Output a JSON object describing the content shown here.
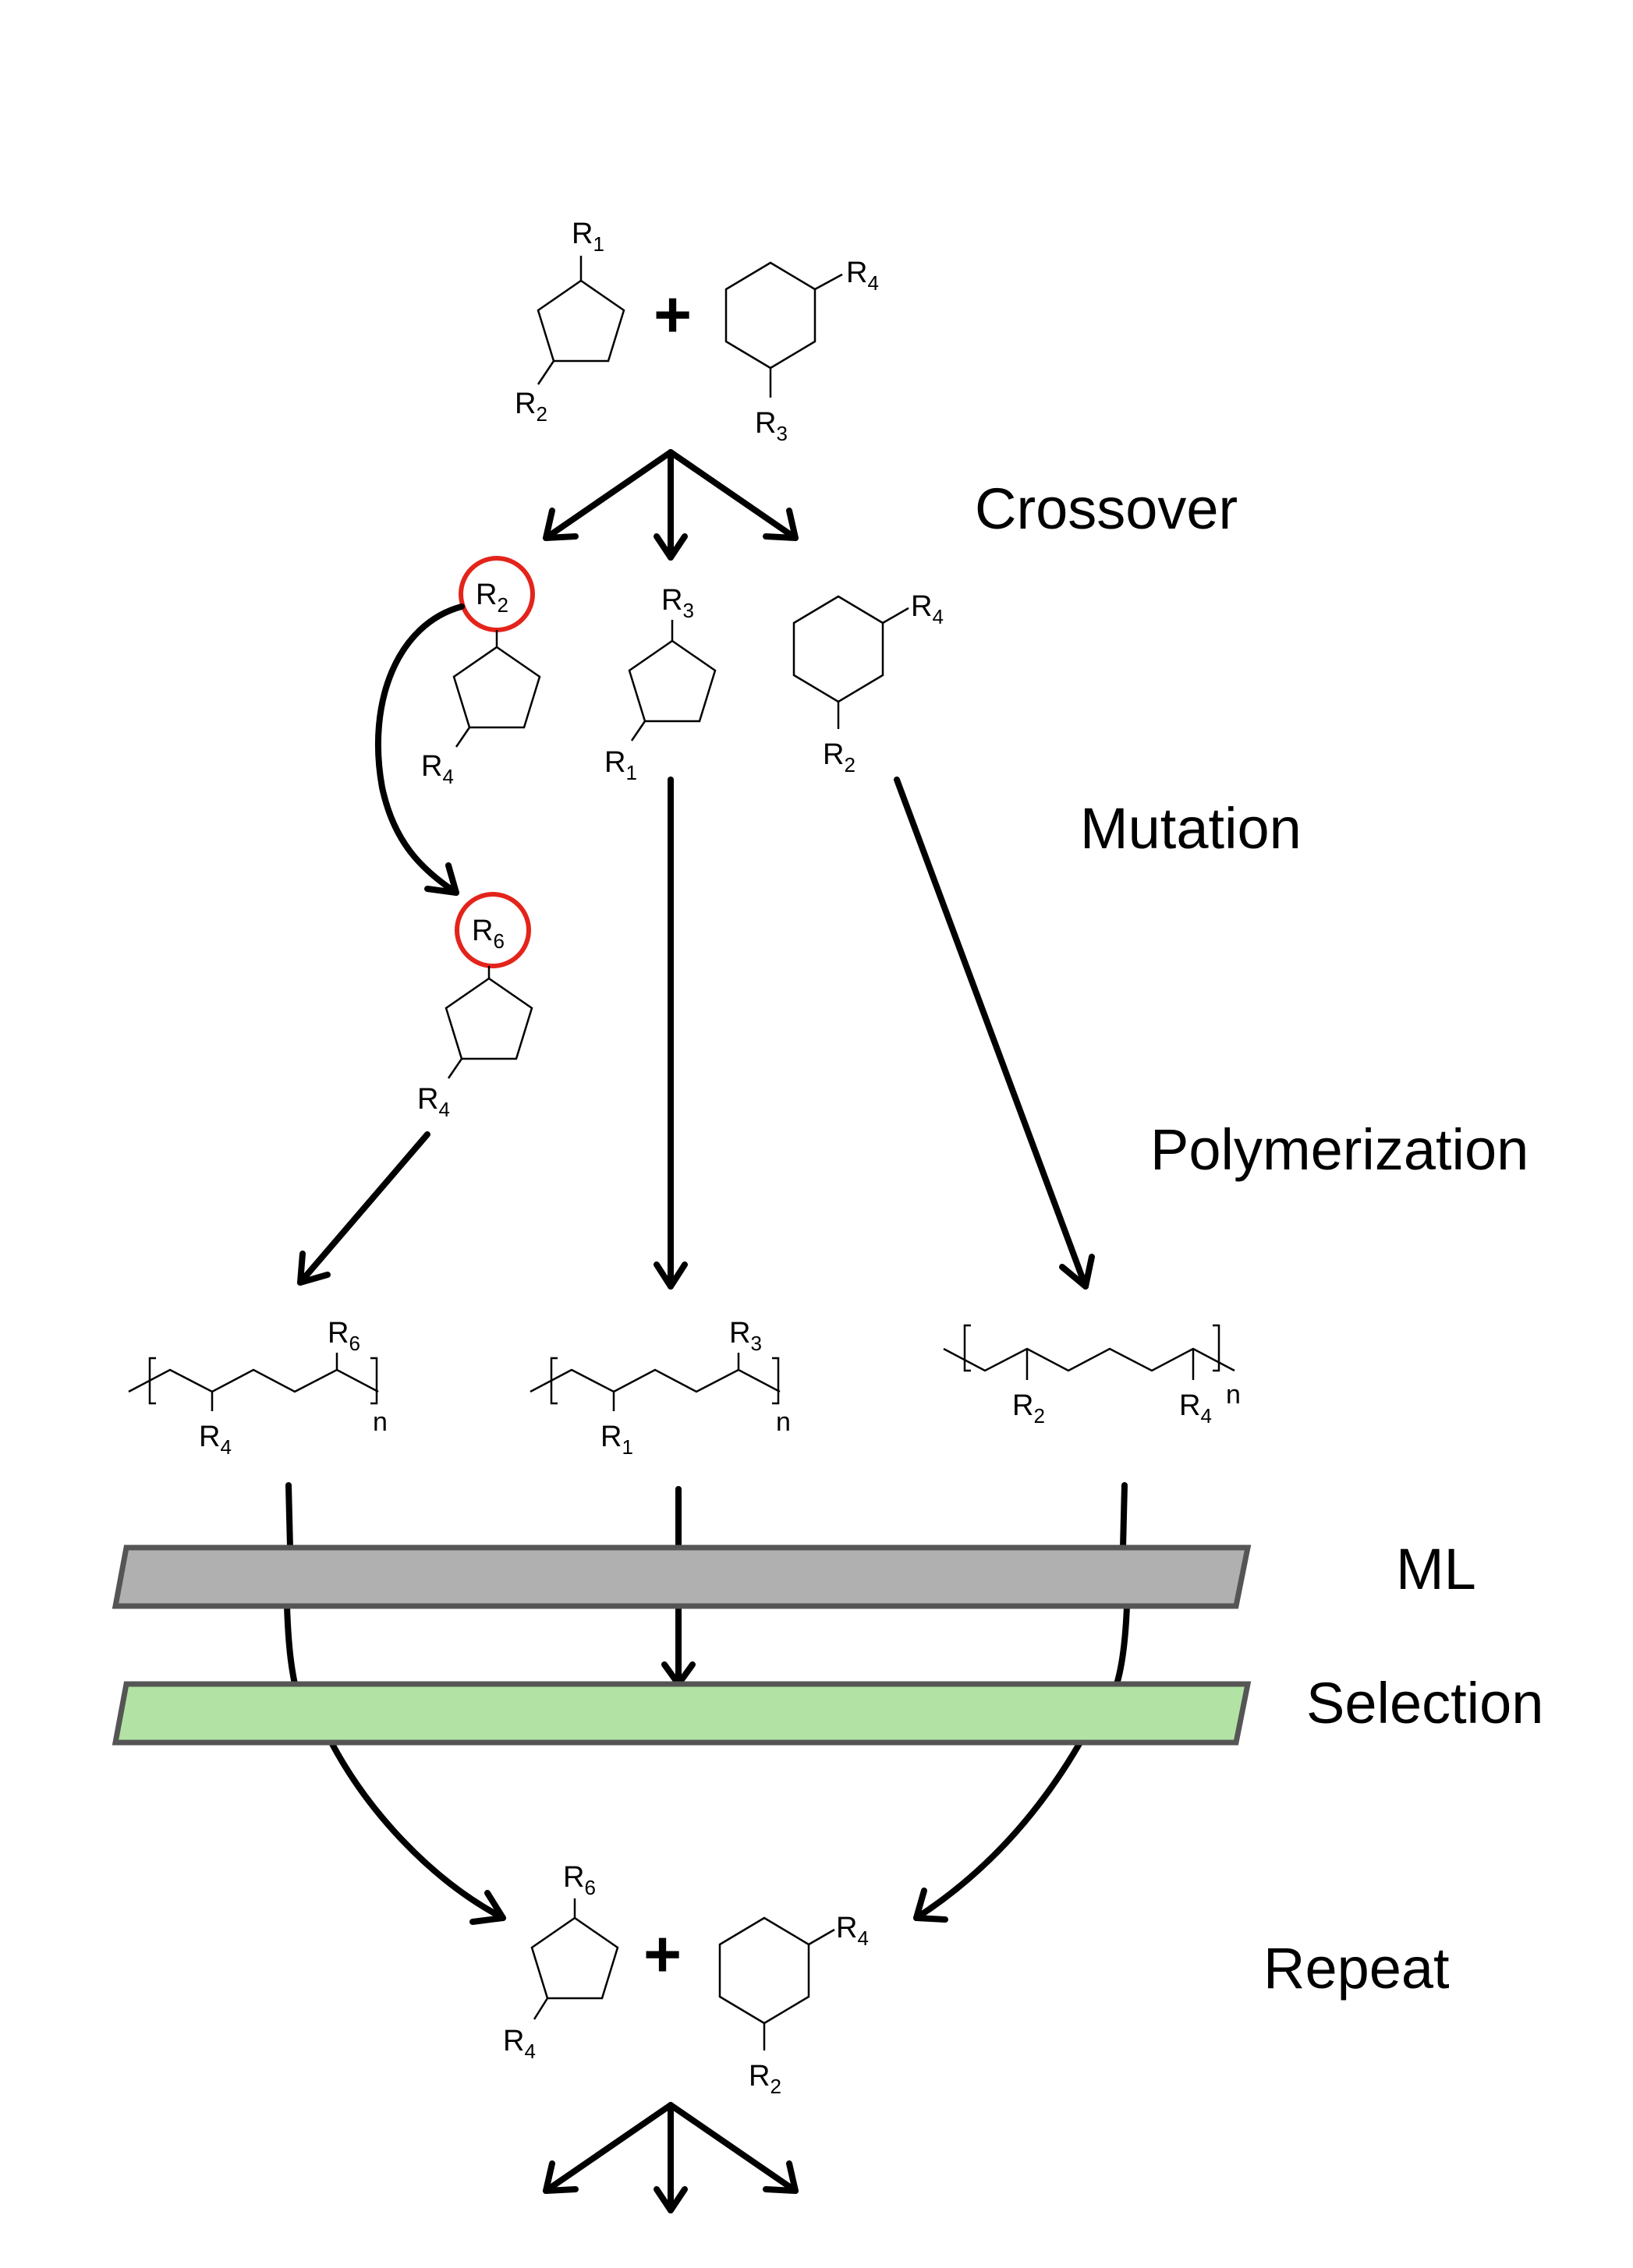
{
  "stages": {
    "crossover": "Crossover",
    "mutation": "Mutation",
    "polymerization": "Polymerization",
    "ml": "ML",
    "selection": "Selection",
    "repeat": "Repeat"
  },
  "operator_plus": "+",
  "polymer_subscript": "n",
  "substituents": {
    "R1": {
      "main": "R",
      "sub": "1"
    },
    "R2": {
      "main": "R",
      "sub": "2"
    },
    "R3": {
      "main": "R",
      "sub": "3"
    },
    "R4": {
      "main": "R",
      "sub": "4"
    },
    "R6": {
      "main": "R",
      "sub": "6"
    }
  },
  "colors": {
    "ml_bar": "#b0b0b0",
    "selection_bar": "#b2e3a4",
    "bar_border": "#555555",
    "mutation_highlight": "#e3241b"
  }
}
